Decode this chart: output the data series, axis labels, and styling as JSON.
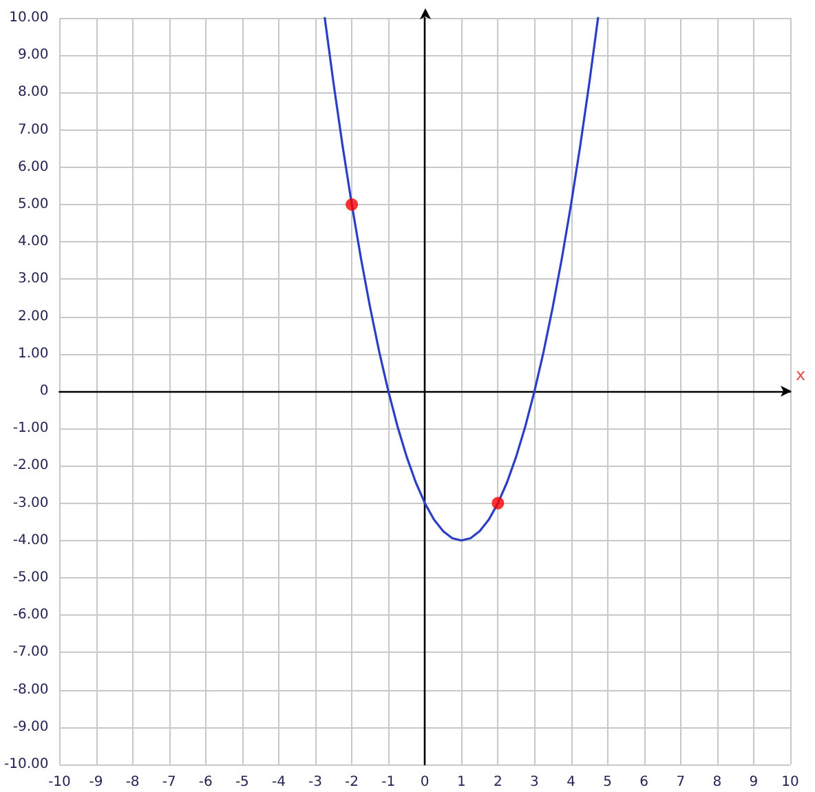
{
  "chart_data": {
    "type": "line",
    "xlabel": "x",
    "grid": true,
    "line_style": "solid",
    "xlim": [
      -10,
      10
    ],
    "xticks": [
      -10,
      -9,
      -8,
      -7,
      -6,
      -5,
      -4,
      -3,
      -2,
      -1,
      0,
      1,
      2,
      3,
      4,
      5,
      6,
      7,
      8,
      9,
      10
    ],
    "ylim": [
      -10,
      10
    ],
    "yticks": [
      {
        "value": -10,
        "label": "-10.00"
      },
      {
        "value": -9,
        "label": "-9.00"
      },
      {
        "value": -8,
        "label": "-8.00"
      },
      {
        "value": -7,
        "label": "-7.00"
      },
      {
        "value": -6,
        "label": "-6.00"
      },
      {
        "value": -5,
        "label": "-5.00"
      },
      {
        "value": -4,
        "label": "-4.00"
      },
      {
        "value": -3,
        "label": "-3.00"
      },
      {
        "value": -2,
        "label": "-2.00"
      },
      {
        "value": -1,
        "label": "-1.00"
      },
      0,
      {
        "value": 1,
        "label": "1.00"
      },
      {
        "value": 2,
        "label": "2.00"
      },
      {
        "value": 3,
        "label": "3.00"
      },
      {
        "value": 4,
        "label": "4.00"
      },
      {
        "value": 5,
        "label": "5.00"
      },
      {
        "value": 6,
        "label": "6.00"
      },
      {
        "value": 7,
        "label": "7.00"
      },
      {
        "value": 8,
        "label": "8.00"
      },
      {
        "value": 9,
        "label": "9.00"
      },
      {
        "value": 10,
        "label": "10.00"
      }
    ],
    "series": [
      {
        "marker": "none",
        "color": "#2a3fc6",
        "x": [
          -2.74,
          -2.5,
          -2.25,
          -2,
          -1.75,
          -1.5,
          -1.25,
          -1,
          -0.75,
          -0.5,
          -0.25,
          0,
          0.25,
          0.5,
          0.75,
          1,
          1.25,
          1.5,
          1.75,
          2,
          2.25,
          2.5,
          2.75,
          3,
          3.25,
          3.5,
          3.75,
          4,
          4.25,
          4.5,
          4.74
        ],
        "values": [
          10,
          8.25,
          6.56,
          5,
          3.56,
          2.25,
          1.06,
          0,
          -0.94,
          -1.75,
          -2.44,
          -3,
          -3.44,
          -3.75,
          -3.94,
          -4,
          -3.94,
          -3.75,
          -3.44,
          -3,
          -2.44,
          -1.75,
          -0.94,
          0,
          1.06,
          2.25,
          3.56,
          5,
          6.56,
          8.25,
          10
        ]
      },
      {
        "type": "scatter",
        "marker": "circle",
        "color": "#ff0000",
        "x": [
          -2,
          2
        ],
        "values": [
          5,
          -3
        ]
      }
    ]
  }
}
